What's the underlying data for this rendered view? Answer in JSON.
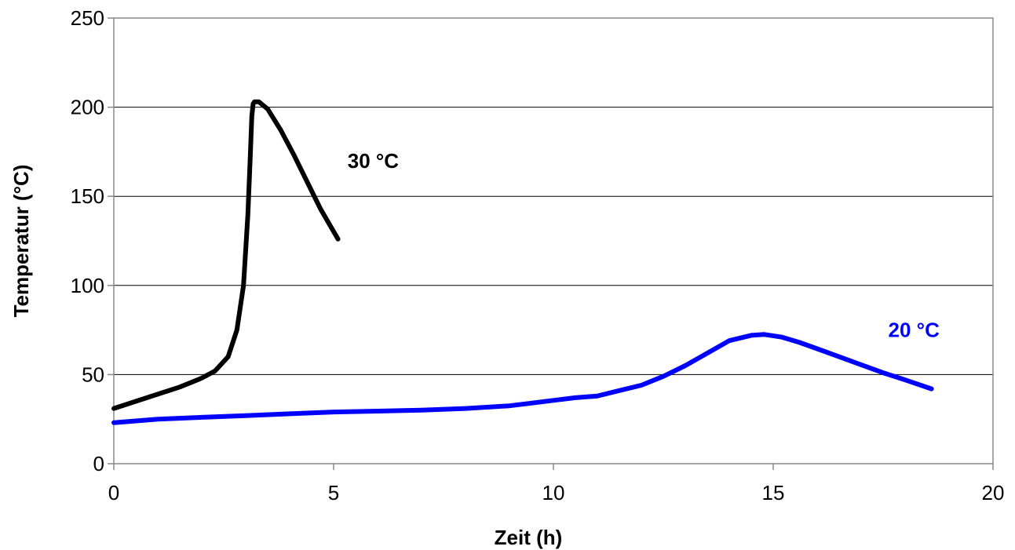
{
  "chart_data": {
    "type": "line",
    "title": "",
    "xlabel": "Zeit (h)",
    "ylabel": "Temperatur (°C)",
    "xlim": [
      0,
      20
    ],
    "ylim": [
      0,
      250
    ],
    "xticks": [
      0,
      5,
      10,
      15,
      20
    ],
    "yticks": [
      0,
      50,
      100,
      150,
      200,
      250
    ],
    "grid": "horizontal",
    "legend": "none",
    "series": [
      {
        "name": "30 °C",
        "color": "#000000",
        "x": [
          0.0,
          0.5,
          1.0,
          1.5,
          2.0,
          2.3,
          2.6,
          2.8,
          2.95,
          3.05,
          3.1,
          3.14,
          3.17,
          3.2,
          3.3,
          3.5,
          3.8,
          4.1,
          4.4,
          4.7,
          5.1
        ],
        "y": [
          31,
          35,
          39,
          43,
          48,
          52,
          60,
          75,
          100,
          140,
          170,
          195,
          202,
          203,
          203,
          199,
          187,
          173,
          158,
          143,
          126
        ]
      },
      {
        "name": "20 °C",
        "color": "#0000ff",
        "x": [
          0.0,
          1.0,
          2.0,
          3.0,
          4.0,
          5.0,
          6.0,
          7.0,
          8.0,
          9.0,
          9.5,
          10.0,
          10.5,
          11.0,
          11.5,
          12.0,
          12.5,
          13.0,
          13.5,
          14.0,
          14.5,
          14.8,
          15.2,
          15.6,
          16.0,
          16.5,
          17.0,
          17.5,
          18.0,
          18.6
        ],
        "y": [
          23,
          25,
          26,
          27,
          28,
          29,
          29.5,
          30,
          31,
          32.5,
          34,
          35.5,
          37,
          38,
          41,
          44,
          49,
          55,
          62,
          69,
          72,
          72.5,
          71,
          68,
          64.5,
          60,
          55.5,
          51,
          47,
          42
        ]
      }
    ],
    "annotations": [
      {
        "text": "30 °C",
        "x": 5.9,
        "y": 166,
        "color": "#000000"
      },
      {
        "text": "20 °C",
        "x": 18.2,
        "y": 71,
        "color": "#0000ff"
      }
    ]
  }
}
